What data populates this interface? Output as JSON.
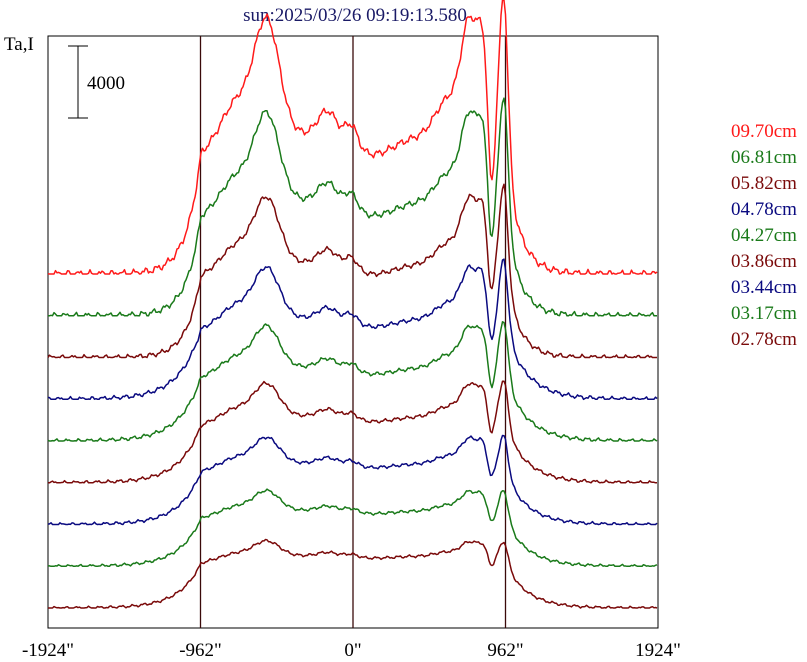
{
  "chart_data": {
    "type": "line",
    "title": "sun:2025/03/26 09:19:13.580",
    "ylabel": "Ta,I",
    "xlim": [
      -1924,
      1924
    ],
    "x_ticks": [
      {
        "value": -1924,
        "label": "-1924\""
      },
      {
        "value": -962,
        "label": "-962\""
      },
      {
        "value": 0,
        "label": "0\""
      },
      {
        "value": 962,
        "label": "962\""
      },
      {
        "value": 1924,
        "label": "1924\""
      }
    ],
    "vertical_guides": [
      -962,
      0,
      962
    ],
    "scale_bar": {
      "value": 4000,
      "label": "4000"
    },
    "series": [
      {
        "name": "09.70cm",
        "color": "#ff1a1a",
        "base": 1,
        "amp": 1.55
      },
      {
        "name": "06.81cm",
        "color": "#1a7a1a",
        "base": 0.875,
        "amp": 1.28
      },
      {
        "name": "05.82cm",
        "color": "#7a0a0a",
        "base": 0.75,
        "amp": 1.05
      },
      {
        "name": "04.78cm",
        "color": "#0a0a80",
        "base": 0.625,
        "amp": 0.9
      },
      {
        "name": "04.27cm",
        "color": "#1a7a1a",
        "base": 0.5,
        "amp": 0.82
      },
      {
        "name": "03.86cm",
        "color": "#7a0a0a",
        "base": 0.375,
        "amp": 0.74
      },
      {
        "name": "03.44cm",
        "color": "#0a0a80",
        "base": 0.25,
        "amp": 0.68
      },
      {
        "name": "03.17cm",
        "color": "#1a7a1a",
        "base": 0.125,
        "amp": 0.62
      },
      {
        "name": "02.78cm",
        "color": "#7a0a0a",
        "base": 0,
        "amp": 0.58
      }
    ]
  }
}
